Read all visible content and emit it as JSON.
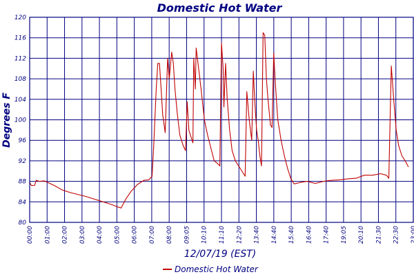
{
  "chart_data": {
    "type": "line",
    "title": "Domestic Hot Water",
    "xlabel": "12/07/19 (EST)",
    "ylabel": "Degrees F",
    "ylim": [
      80,
      120
    ],
    "yticks": [
      80,
      84,
      88,
      92,
      96,
      100,
      104,
      108,
      112,
      116,
      120
    ],
    "xlim": [
      0,
      23.5
    ],
    "xtick_labels": [
      "00:00",
      "01:00",
      "02:00",
      "03:00",
      "04:00",
      "05:00",
      "06:00",
      "07:00",
      "08:00",
      "09:05",
      "10:10",
      "11:10",
      "12:20",
      "13:40",
      "14:40",
      "15:40",
      "16:40",
      "17:40",
      "19:05",
      "20:10",
      "21:30",
      "22:30",
      "23:00"
    ],
    "grid": true,
    "legend_position": "bottom-center",
    "colors": {
      "series": "#c00000",
      "axis": "#000080",
      "grid": "#000080",
      "title": "#000080"
    },
    "series": [
      {
        "name": "Domestic Hot Water",
        "x_unit": "hours",
        "points": [
          [
            0.0,
            87.8
          ],
          [
            0.1,
            87.2
          ],
          [
            0.3,
            87.2
          ],
          [
            0.4,
            88.2
          ],
          [
            0.6,
            88.0
          ],
          [
            0.9,
            88.1
          ],
          [
            1.1,
            87.8
          ],
          [
            1.5,
            87.2
          ],
          [
            2.0,
            86.3
          ],
          [
            2.5,
            85.8
          ],
          [
            3.0,
            85.4
          ],
          [
            3.5,
            85.0
          ],
          [
            4.0,
            84.5
          ],
          [
            4.5,
            84.0
          ],
          [
            5.0,
            83.5
          ],
          [
            5.4,
            83.0
          ],
          [
            5.6,
            82.8
          ],
          [
            5.9,
            84.6
          ],
          [
            6.2,
            86.0
          ],
          [
            6.6,
            87.4
          ],
          [
            7.0,
            88.2
          ],
          [
            7.3,
            88.3
          ],
          [
            7.5,
            89.0
          ],
          [
            7.6,
            95.0
          ],
          [
            7.75,
            106.0
          ],
          [
            7.85,
            111.0
          ],
          [
            7.95,
            111.0
          ],
          [
            8.05,
            106.0
          ],
          [
            8.15,
            101.0
          ],
          [
            8.3,
            97.5
          ],
          [
            8.45,
            112.0
          ],
          [
            8.55,
            108.0
          ],
          [
            8.7,
            113.2
          ],
          [
            8.8,
            111.0
          ],
          [
            8.9,
            106.0
          ],
          [
            9.05,
            101.0
          ],
          [
            9.2,
            97.0
          ],
          [
            9.4,
            95.0
          ],
          [
            9.55,
            94.0
          ],
          [
            9.65,
            103.5
          ],
          [
            9.75,
            98.0
          ],
          [
            9.9,
            96.5
          ],
          [
            10.0,
            95.5
          ],
          [
            10.05,
            112.0
          ],
          [
            10.15,
            106.0
          ],
          [
            10.2,
            114.0
          ],
          [
            10.35,
            110.0
          ],
          [
            10.5,
            106.0
          ],
          [
            10.7,
            100.0
          ],
          [
            10.9,
            97.0
          ],
          [
            11.1,
            94.5
          ],
          [
            11.3,
            92.0
          ],
          [
            11.5,
            91.5
          ],
          [
            11.65,
            91.0
          ],
          [
            11.75,
            115.0
          ],
          [
            11.85,
            110.0
          ],
          [
            11.9,
            102.5
          ],
          [
            12.0,
            111.0
          ],
          [
            12.1,
            104.0
          ],
          [
            12.25,
            98.0
          ],
          [
            12.4,
            94.0
          ],
          [
            12.6,
            92.0
          ],
          [
            12.9,
            90.5
          ],
          [
            13.1,
            89.5
          ],
          [
            13.2,
            89.0
          ],
          [
            13.3,
            105.5
          ],
          [
            13.45,
            100.0
          ],
          [
            13.6,
            96.0
          ],
          [
            13.7,
            109.5
          ],
          [
            13.8,
            103.0
          ],
          [
            13.9,
            98.0
          ],
          [
            14.0,
            96.0
          ],
          [
            14.1,
            93.0
          ],
          [
            14.2,
            91.0
          ],
          [
            14.3,
            117.0
          ],
          [
            14.4,
            116.5
          ],
          [
            14.5,
            108.0
          ],
          [
            14.6,
            104.0
          ],
          [
            14.75,
            99.0
          ],
          [
            14.85,
            98.5
          ],
          [
            14.95,
            113.0
          ],
          [
            15.05,
            107.0
          ],
          [
            15.2,
            100.0
          ],
          [
            15.4,
            96.0
          ],
          [
            15.6,
            93.0
          ],
          [
            15.8,
            90.5
          ],
          [
            16.0,
            88.5
          ],
          [
            16.2,
            87.5
          ],
          [
            16.6,
            87.8
          ],
          [
            17.0,
            88.0
          ],
          [
            17.5,
            87.6
          ],
          [
            18.0,
            88.0
          ],
          [
            18.5,
            88.2
          ],
          [
            19.0,
            88.3
          ],
          [
            19.5,
            88.5
          ],
          [
            20.0,
            88.6
          ],
          [
            20.5,
            89.2
          ],
          [
            21.0,
            89.2
          ],
          [
            21.5,
            89.5
          ],
          [
            21.85,
            89.2
          ],
          [
            22.0,
            88.6
          ],
          [
            22.15,
            110.5
          ],
          [
            22.3,
            104.0
          ],
          [
            22.45,
            98.0
          ],
          [
            22.6,
            95.0
          ],
          [
            22.8,
            93.0
          ],
          [
            23.0,
            92.0
          ],
          [
            23.2,
            90.8
          ]
        ]
      }
    ]
  }
}
